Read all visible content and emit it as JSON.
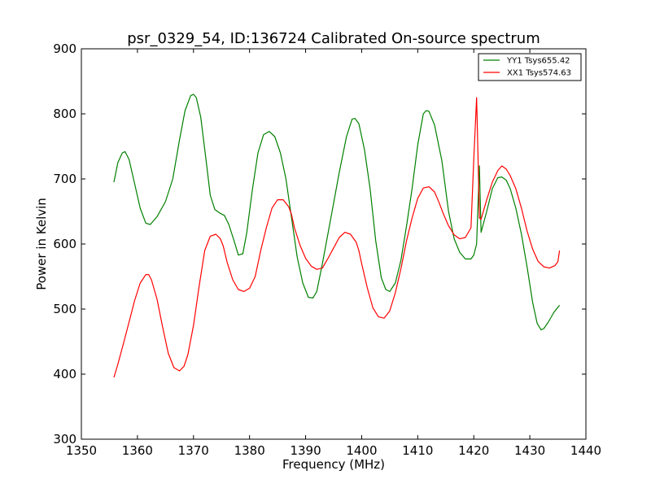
{
  "chart_data": {
    "type": "line",
    "title": "psr_0329_54, ID:136724 Calibrated On-source spectrum",
    "xlabel": "Frequency (MHz)",
    "ylabel": "Power in Kelvin",
    "xlim": [
      1350,
      1440
    ],
    "ylim": [
      300,
      900
    ],
    "xticks": [
      1350,
      1360,
      1370,
      1380,
      1390,
      1400,
      1410,
      1420,
      1430,
      1440
    ],
    "yticks": [
      300,
      400,
      500,
      600,
      700,
      800,
      900
    ],
    "xtick_labels": [
      "1350",
      "1360",
      "1370",
      "1380",
      "1390",
      "1400",
      "1410",
      "1420",
      "1430",
      "1440"
    ],
    "ytick_labels": [
      "300",
      "400",
      "500",
      "600",
      "700",
      "800",
      "900"
    ],
    "grid": false,
    "legend_position": "top-right",
    "series": [
      {
        "name": "YY1 Tsys655.42",
        "color": "#008000",
        "x": [
          1355.8,
          1356.5,
          1357.3,
          1357.8,
          1358.5,
          1359.3,
          1360.5,
          1361.5,
          1362.3,
          1363.5,
          1365.0,
          1366.3,
          1367.5,
          1368.5,
          1369.5,
          1370.0,
          1370.5,
          1371.3,
          1372.3,
          1373.0,
          1373.8,
          1374.8,
          1375.5,
          1376.3,
          1377.3,
          1378.0,
          1378.8,
          1379.5,
          1380.5,
          1381.5,
          1382.5,
          1383.5,
          1384.5,
          1385.5,
          1386.5,
          1387.5,
          1388.5,
          1389.5,
          1390.5,
          1391.3,
          1392.0,
          1393.0,
          1394.5,
          1396.0,
          1397.3,
          1398.3,
          1398.8,
          1399.5,
          1400.5,
          1401.5,
          1402.5,
          1403.5,
          1404.3,
          1405.0,
          1406.0,
          1407.0,
          1408.0,
          1409.0,
          1410.0,
          1411.0,
          1411.5,
          1412.0,
          1413.0,
          1414.3,
          1415.5,
          1416.5,
          1417.5,
          1418.5,
          1419.5,
          1420.0,
          1420.5,
          1421.0,
          1421.3,
          1422.3,
          1423.3,
          1424.3,
          1425.0,
          1425.8,
          1426.5,
          1427.5,
          1428.5,
          1429.5,
          1430.5,
          1431.3,
          1432.0,
          1432.5,
          1433.3,
          1434.3,
          1435.3
        ],
        "values": [
          695,
          725,
          740,
          742,
          730,
          700,
          655,
          632,
          630,
          642,
          665,
          700,
          760,
          805,
          828,
          830,
          825,
          795,
          725,
          675,
          653,
          647,
          644,
          630,
          603,
          583,
          585,
          617,
          683,
          740,
          768,
          773,
          765,
          740,
          700,
          640,
          580,
          540,
          518,
          517,
          527,
          570,
          640,
          710,
          765,
          792,
          793,
          785,
          745,
          685,
          605,
          548,
          530,
          527,
          540,
          575,
          628,
          685,
          752,
          800,
          805,
          804,
          783,
          728,
          650,
          608,
          587,
          577,
          577,
          583,
          600,
          720,
          618,
          650,
          685,
          702,
          703,
          698,
          685,
          655,
          615,
          565,
          510,
          478,
          468,
          470,
          480,
          495,
          506
        ]
      },
      {
        "name": "XX1 Tsys574.63",
        "color": "#ff0000",
        "x": [
          1355.8,
          1356.5,
          1357.5,
          1358.5,
          1359.5,
          1360.5,
          1361.5,
          1362.0,
          1362.5,
          1363.5,
          1364.5,
          1365.5,
          1366.5,
          1367.5,
          1368.3,
          1369.0,
          1370.0,
          1371.0,
          1372.0,
          1373.0,
          1374.0,
          1374.8,
          1375.3,
          1376.0,
          1377.0,
          1378.0,
          1379.0,
          1380.0,
          1381.0,
          1381.5,
          1382.0,
          1383.0,
          1384.0,
          1385.0,
          1386.0,
          1387.0,
          1387.5,
          1388.0,
          1389.0,
          1390.0,
          1391.0,
          1392.0,
          1393.0,
          1394.0,
          1395.0,
          1396.0,
          1397.0,
          1398.0,
          1399.0,
          1399.5,
          1400.0,
          1401.0,
          1402.0,
          1403.0,
          1404.0,
          1405.0,
          1406.0,
          1407.0,
          1408.0,
          1409.0,
          1410.0,
          1411.0,
          1412.0,
          1413.0,
          1413.8,
          1414.5,
          1415.5,
          1416.5,
          1417.5,
          1418.5,
          1419.5,
          1420.0,
          1420.5,
          1420.8,
          1421.0,
          1421.3,
          1422.3,
          1423.3,
          1424.3,
          1425.0,
          1425.8,
          1426.5,
          1427.5,
          1428.5,
          1429.5,
          1430.5,
          1431.5,
          1432.5,
          1433.5,
          1434.5,
          1435.0,
          1435.3
        ],
        "values": [
          395,
          415,
          447,
          480,
          513,
          540,
          553,
          553,
          545,
          515,
          472,
          432,
          410,
          405,
          412,
          430,
          475,
          535,
          590,
          612,
          615,
          608,
          597,
          572,
          545,
          530,
          527,
          532,
          550,
          570,
          590,
          625,
          655,
          668,
          668,
          657,
          645,
          625,
          598,
          578,
          566,
          561,
          563,
          578,
          594,
          610,
          618,
          615,
          603,
          590,
          570,
          533,
          502,
          488,
          486,
          497,
          525,
          562,
          605,
          640,
          670,
          686,
          688,
          680,
          664,
          648,
          628,
          614,
          608,
          610,
          625,
          730,
          825,
          720,
          640,
          638,
          668,
          695,
          713,
          720,
          715,
          705,
          685,
          655,
          620,
          592,
          573,
          565,
          563,
          567,
          573,
          590
        ]
      }
    ]
  }
}
